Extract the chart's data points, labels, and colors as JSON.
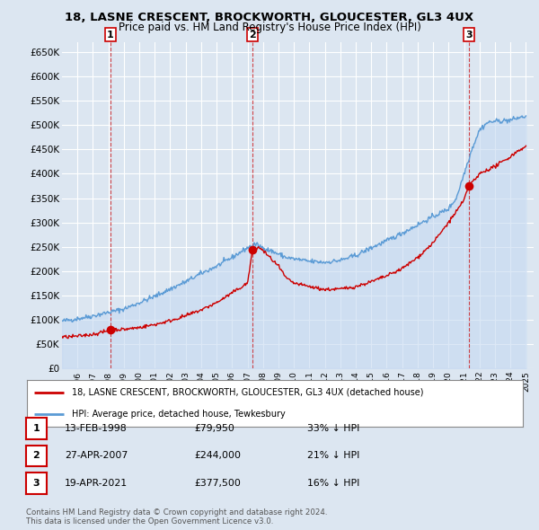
{
  "title_line1": "18, LASNE CRESCENT, BROCKWORTH, GLOUCESTER, GL3 4UX",
  "title_line2": "Price paid vs. HM Land Registry's House Price Index (HPI)",
  "background_color": "#dce6f1",
  "grid_color": "#ffffff",
  "ylim": [
    0,
    670000
  ],
  "yticks": [
    0,
    50000,
    100000,
    150000,
    200000,
    250000,
    300000,
    350000,
    400000,
    450000,
    500000,
    550000,
    600000,
    650000
  ],
  "ytick_labels": [
    "£0",
    "£50K",
    "£100K",
    "£150K",
    "£200K",
    "£250K",
    "£300K",
    "£350K",
    "£400K",
    "£450K",
    "£500K",
    "£550K",
    "£600K",
    "£650K"
  ],
  "sale_dates_num": [
    1998.12,
    2007.32,
    2021.3
  ],
  "sale_prices": [
    79950,
    244000,
    377500
  ],
  "sale_labels": [
    "1",
    "2",
    "3"
  ],
  "legend_line1": "18, LASNE CRESCENT, BROCKWORTH, GLOUCESTER, GL3 4UX (detached house)",
  "legend_line2": "HPI: Average price, detached house, Tewkesbury",
  "table_data": [
    [
      "1",
      "13-FEB-1998",
      "£79,950",
      "33% ↓ HPI"
    ],
    [
      "2",
      "27-APR-2007",
      "£244,000",
      "21% ↓ HPI"
    ],
    [
      "3",
      "19-APR-2021",
      "£377,500",
      "16% ↓ HPI"
    ]
  ],
  "footer": "Contains HM Land Registry data © Crown copyright and database right 2024.\nThis data is licensed under the Open Government Licence v3.0.",
  "red_color": "#cc0000",
  "blue_color": "#5b9bd5",
  "blue_fill": "#c5d9f1",
  "title_fontsize": 9.5,
  "subtitle_fontsize": 8.5
}
